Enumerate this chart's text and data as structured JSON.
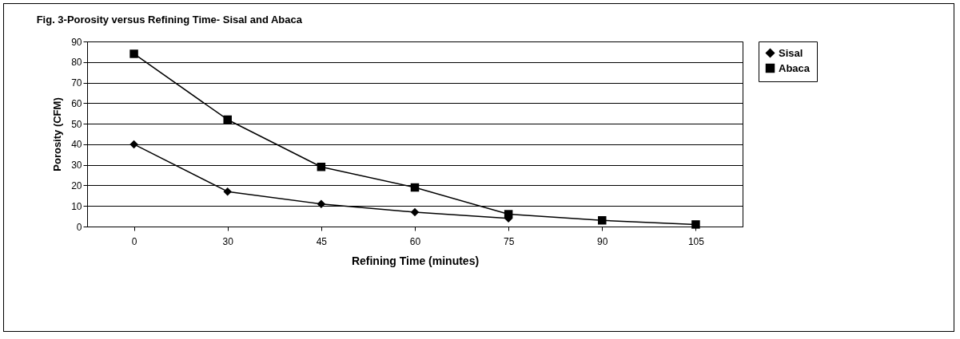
{
  "chart_data": {
    "type": "line",
    "title": "Fig. 3-Porosity versus Refining Time- Sisal and Abaca",
    "xlabel": "Refining Time (minutes)",
    "ylabel": "Porosity (CFM)",
    "categories": [
      "0",
      "30",
      "45",
      "60",
      "75",
      "90",
      "105"
    ],
    "series": [
      {
        "name": "Sisal",
        "color": "#000000",
        "marker": "diamond",
        "values": [
          40,
          17,
          11,
          7,
          4,
          null,
          null
        ]
      },
      {
        "name": "Abaca",
        "color": "#000000",
        "marker": "square",
        "values": [
          84,
          52,
          29,
          19,
          6,
          3,
          1
        ]
      }
    ],
    "ylim": [
      0,
      90
    ],
    "yticks": [
      0,
      10,
      20,
      30,
      40,
      50,
      60,
      70,
      80,
      90
    ],
    "grid": "y",
    "legend": "right",
    "line_style": "solid"
  }
}
